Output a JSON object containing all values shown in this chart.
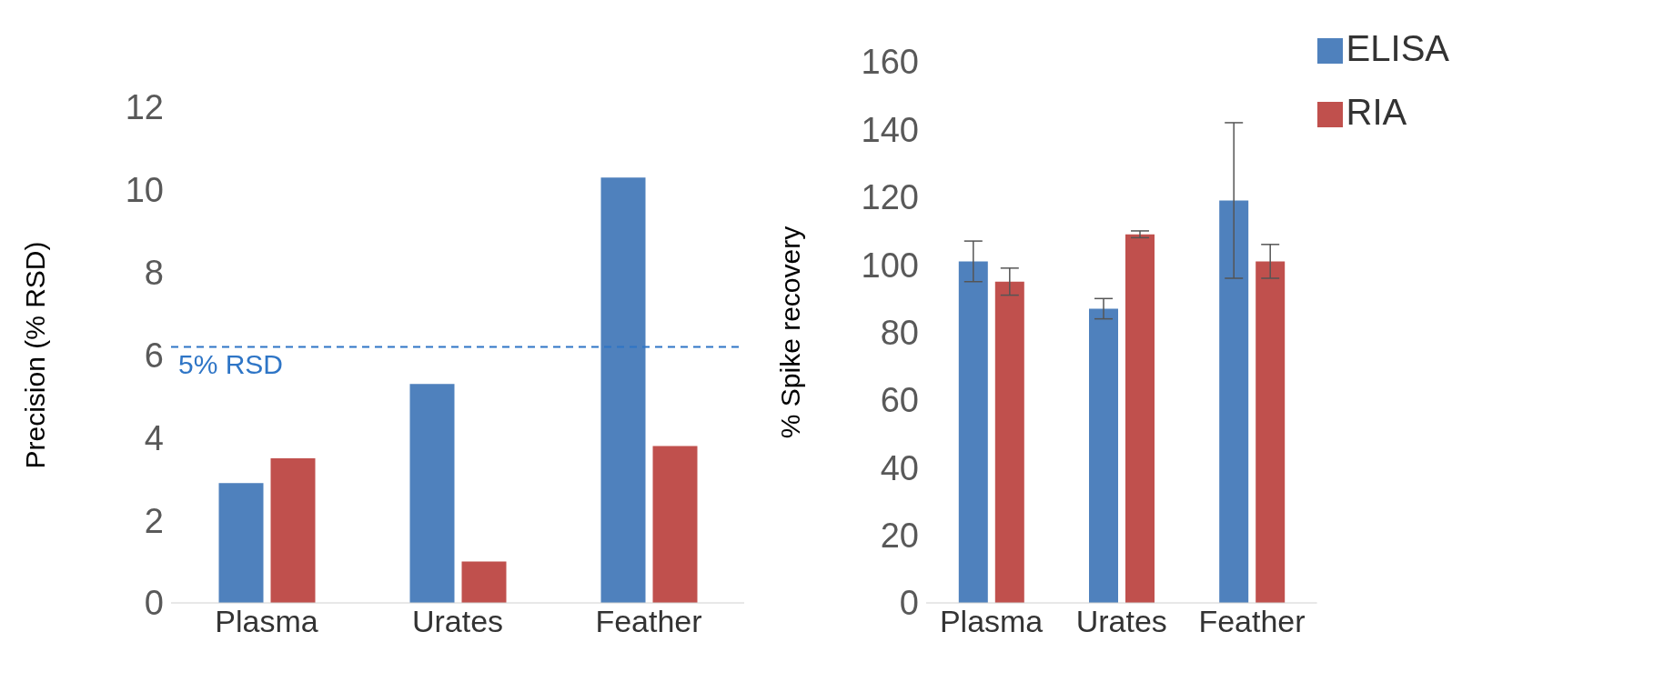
{
  "chart_data": [
    {
      "type": "bar",
      "ylabel": "Precision (% RSD)",
      "categories": [
        "Plasma",
        "Urates",
        "Feather"
      ],
      "series": [
        {
          "color": "#4f81bd",
          "values": [
            2.9,
            5.3,
            10.3
          ]
        },
        {
          "color": "#c0504d",
          "values": [
            3.5,
            1.0,
            3.8
          ]
        }
      ],
      "ylim": [
        0,
        12
      ],
      "yticks": [
        0,
        2,
        4,
        6,
        8,
        10,
        12
      ],
      "grid": false,
      "legend": false,
      "ref_lines": [
        {
          "axis": "y",
          "value": 6.2,
          "label": "5% RSD",
          "color": "#2e75c6",
          "line_style": "dashed"
        }
      ]
    },
    {
      "type": "bar",
      "ylabel": "% Spike recovery",
      "categories": [
        "Plasma",
        "Urates",
        "Feather"
      ],
      "series": [
        {
          "name": "ELISA",
          "color": "#4f81bd",
          "values": [
            101,
            87,
            119
          ],
          "errors": [
            [
              95,
              107
            ],
            [
              84,
              90
            ],
            [
              96,
              142
            ]
          ]
        },
        {
          "name": "RIA",
          "color": "#c0504d",
          "values": [
            95,
            109,
            101
          ],
          "errors": [
            [
              91,
              99
            ],
            [
              108,
              110
            ],
            [
              96,
              106
            ]
          ]
        }
      ],
      "ylim": [
        0,
        160
      ],
      "yticks": [
        0,
        20,
        40,
        60,
        80,
        100,
        120,
        140,
        160
      ],
      "grid": false,
      "legend": "top right"
    }
  ]
}
